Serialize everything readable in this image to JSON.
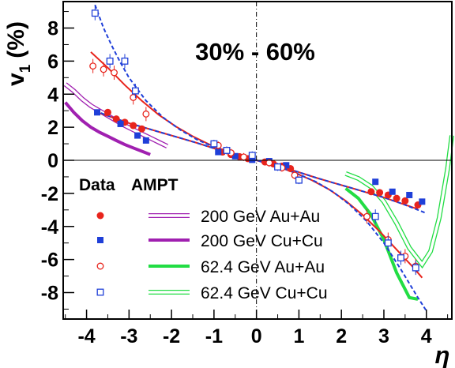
{
  "chart_data": {
    "type": "scatter",
    "title": "",
    "annotation": "30% - 60%",
    "xlabel": "η",
    "ylabel_main": "v",
    "ylabel_sub": "1",
    "ylabel_unit": "(%)",
    "xlim": [
      -4.55,
      4.6
    ],
    "ylim": [
      -9.6,
      9.6
    ],
    "x_ticks": [
      -4,
      -3,
      -2,
      -1,
      0,
      1,
      2,
      3,
      4
    ],
    "y_ticks": [
      -8,
      -6,
      -4,
      -2,
      0,
      2,
      4,
      6,
      8
    ],
    "grid": false,
    "legend": {
      "placement": "bottom-left",
      "data_header": "Data",
      "model_header": "AMPT",
      "entries": [
        {
          "label": "200 GeV Au+Au",
          "marker": "filled-circle",
          "color": "#e8241c"
        },
        {
          "label": "200 GeV Cu+Cu",
          "marker": "filled-square",
          "color": "#1f3fd8"
        },
        {
          "label": "62.4 GeV Au+Au",
          "marker": "open-circle",
          "color": "#e8241c"
        },
        {
          "label": "62.4 GeV Cu+Cu",
          "marker": "open-square",
          "color": "#1f3fd8"
        }
      ]
    },
    "colors": {
      "red": "#e8241c",
      "blue": "#1f3fd8",
      "purple": "#a020b0",
      "green": "#22dd44"
    },
    "series": [
      {
        "name": "200 GeV Au+Au",
        "kind": "data",
        "marker": "filled-circle",
        "color": "#e8241c",
        "x": [
          -3.5,
          -3.3,
          -3.1,
          -2.9,
          -2.7,
          -0.8,
          -0.6,
          -0.4,
          -0.2,
          0.2,
          0.4,
          0.6,
          0.8,
          2.7,
          2.9,
          3.1,
          3.3,
          3.5,
          3.8
        ],
        "y": [
          2.9,
          2.5,
          2.3,
          2.1,
          1.9,
          0.5,
          0.35,
          0.22,
          0.1,
          -0.1,
          -0.22,
          -0.35,
          -0.5,
          -1.9,
          -1.95,
          -2.1,
          -2.3,
          -2.45,
          -2.7
        ]
      },
      {
        "name": "200 GeV Cu+Cu",
        "kind": "data",
        "marker": "filled-square",
        "color": "#1f3fd8",
        "x": [
          -3.75,
          -3.2,
          -2.8,
          -2.6,
          -0.9,
          -0.5,
          -0.1,
          0.3,
          0.7,
          2.8,
          3.2,
          3.6,
          3.9
        ],
        "y": [
          2.9,
          2.2,
          1.5,
          1.2,
          0.5,
          0.25,
          0.03,
          -0.05,
          -0.3,
          -1.3,
          -1.9,
          -2.1,
          -2.5
        ]
      },
      {
        "name": "62.4 GeV Au+Au",
        "kind": "data",
        "marker": "open-circle",
        "color": "#e8241c",
        "x": [
          -3.85,
          -3.6,
          -3.35,
          -2.9,
          -2.6,
          -0.9,
          -0.6,
          -0.3,
          0.3,
          0.6,
          0.9,
          2.6,
          3.1,
          3.5,
          3.75
        ],
        "y": [
          5.7,
          5.5,
          5.3,
          3.8,
          2.8,
          0.9,
          0.45,
          0.2,
          -0.15,
          -0.45,
          -0.9,
          -3.4,
          -4.8,
          -5.8,
          -6.4
        ]
      },
      {
        "name": "62.4 GeV Cu+Cu",
        "kind": "data",
        "marker": "open-square",
        "color": "#1f3fd8",
        "x": [
          -3.8,
          -3.45,
          -3.1,
          -2.85,
          -1.0,
          -0.7,
          -0.1,
          0.5,
          1.0,
          2.8,
          3.1,
          3.4,
          3.75
        ],
        "y": [
          8.9,
          6.0,
          6.0,
          4.2,
          1.0,
          0.6,
          0.3,
          -0.4,
          -1.2,
          -3.4,
          -5.0,
          -5.9,
          -6.5
        ]
      },
      {
        "name": "",
        "kind": "fit",
        "style": "red-solid",
        "color": "#e8241c",
        "x": [
          -3.8,
          -3.4,
          -3.0,
          -2.6,
          -2.2,
          -1.8,
          -1.4,
          -1.0,
          -0.6,
          -0.2,
          0.2,
          0.6,
          1.0,
          1.4,
          1.8,
          2.2,
          2.6,
          3.0,
          3.4,
          3.8
        ],
        "y": [
          2.95,
          2.6,
          2.25,
          1.95,
          1.65,
          1.35,
          1.05,
          0.72,
          0.4,
          0.12,
          -0.12,
          -0.4,
          -0.72,
          -1.05,
          -1.35,
          -1.65,
          -1.95,
          -2.25,
          -2.6,
          -2.95
        ]
      },
      {
        "name": "",
        "kind": "fit",
        "style": "red-solid",
        "color": "#e8241c",
        "x": [
          -3.9,
          -3.5,
          -3.1,
          -2.7,
          -2.3,
          -1.9,
          -1.5,
          -1.1,
          -0.7,
          -0.3,
          0.1,
          0.5,
          0.9,
          1.3,
          1.7,
          2.1,
          2.5,
          2.9,
          3.3,
          3.7,
          3.9
        ],
        "y": [
          6.55,
          5.6,
          4.55,
          3.6,
          2.75,
          2.05,
          1.45,
          0.95,
          0.55,
          0.2,
          -0.07,
          -0.38,
          -0.75,
          -1.2,
          -1.75,
          -2.45,
          -3.3,
          -4.3,
          -5.4,
          -6.5,
          -7.1
        ]
      },
      {
        "name": "",
        "kind": "fit",
        "style": "blue-dashed",
        "color": "#1f3fd8",
        "x": [
          -3.8,
          -3.4,
          -3.0,
          -2.6,
          -2.2,
          -1.8,
          -1.4,
          -1.0,
          -0.6,
          -0.2,
          0.2,
          0.6,
          1.0,
          1.4,
          1.8,
          2.2,
          2.6,
          3.0,
          3.4,
          3.8,
          4.0
        ],
        "y": [
          3.0,
          2.6,
          2.25,
          1.95,
          1.65,
          1.35,
          1.05,
          0.72,
          0.42,
          0.12,
          -0.12,
          -0.42,
          -0.72,
          -1.05,
          -1.35,
          -1.65,
          -1.95,
          -2.25,
          -2.6,
          -3.0,
          -3.2
        ]
      },
      {
        "name": "",
        "kind": "fit",
        "style": "blue-dashed",
        "color": "#1f3fd8",
        "x": [
          -3.8,
          -3.6,
          -3.4,
          -3.2,
          -3.0,
          -2.8,
          -2.6,
          -2.2,
          -1.8,
          -1.4,
          -1.0,
          -0.6,
          -0.2,
          0.2,
          0.6,
          1.0,
          1.4,
          1.8,
          2.2,
          2.6,
          3.0,
          3.4,
          3.8,
          4.0
        ],
        "y": [
          9.4,
          8.0,
          6.9,
          5.9,
          5.0,
          4.3,
          3.6,
          2.6,
          1.85,
          1.25,
          0.8,
          0.45,
          0.15,
          -0.15,
          -0.45,
          -0.85,
          -1.3,
          -1.9,
          -2.7,
          -3.7,
          -5.0,
          -6.6,
          -8.3,
          -9.1
        ]
      },
      {
        "name": "200 GeV Au+Au",
        "kind": "model",
        "style": "purple-double",
        "color": "#a020b0",
        "x": [
          -4.5,
          -4.3,
          -4.1,
          -3.9,
          -3.7,
          -3.5,
          -3.3,
          -3.1,
          -2.9,
          -2.7,
          -2.5,
          -2.3,
          -2.1
        ],
        "y": [
          4.6,
          4.2,
          3.7,
          3.3,
          3.0,
          2.7,
          2.4,
          2.1,
          1.85,
          1.6,
          1.35,
          1.1,
          0.85
        ]
      },
      {
        "name": "200 GeV Cu+Cu",
        "kind": "model",
        "style": "purple-thick",
        "color": "#a020b0",
        "x": [
          -4.5,
          -4.3,
          -4.1,
          -3.9,
          -3.7,
          -3.5,
          -3.3,
          -3.1,
          -2.9,
          -2.7,
          -2.5
        ],
        "y": [
          3.5,
          2.9,
          2.4,
          2.0,
          1.7,
          1.45,
          1.2,
          0.95,
          0.75,
          0.55,
          0.35
        ]
      },
      {
        "name": "62.4 GeV Au+Au",
        "kind": "model",
        "style": "green-thick",
        "color": "#22dd44",
        "x": [
          2.1,
          2.4,
          2.7,
          3.0,
          3.3,
          3.6,
          3.8
        ],
        "y": [
          -1.7,
          -2.3,
          -3.3,
          -4.8,
          -6.8,
          -8.3,
          -8.4
        ]
      },
      {
        "name": "62.4 GeV Cu+Cu",
        "kind": "model",
        "style": "green-double",
        "color": "#22dd44",
        "x": [
          2.1,
          2.4,
          2.7,
          3.0,
          3.3,
          3.6,
          3.9,
          4.1,
          4.3,
          4.5,
          4.6
        ],
        "y": [
          -0.8,
          -1.1,
          -1.6,
          -2.5,
          -3.8,
          -5.3,
          -6.3,
          -5.5,
          -3.5,
          -0.5,
          1.5
        ]
      }
    ]
  }
}
